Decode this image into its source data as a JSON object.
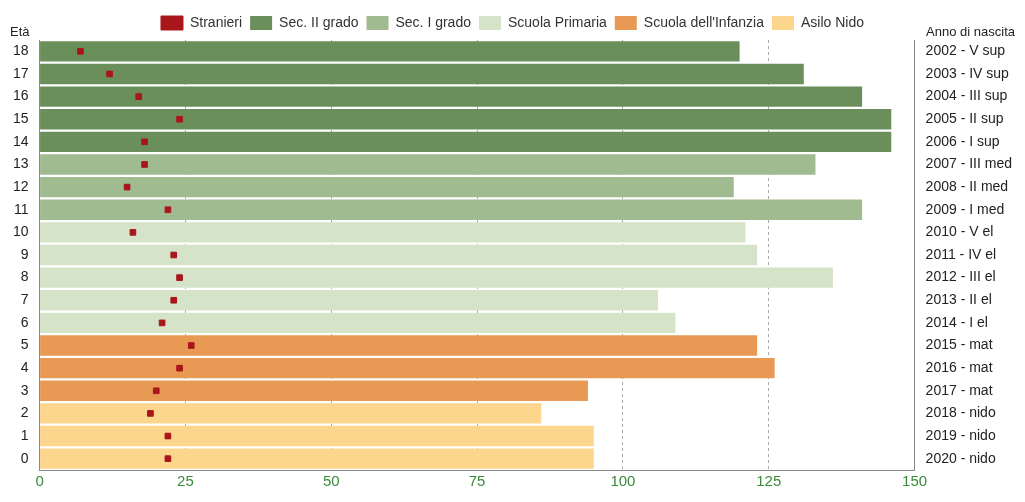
{
  "chart_data": {
    "type": "bar",
    "orientation": "horizontal",
    "ylabel": "Età",
    "y2label": "Anno di nascita",
    "categories": [
      "18",
      "17",
      "16",
      "15",
      "14",
      "13",
      "12",
      "11",
      "10",
      "9",
      "8",
      "7",
      "6",
      "5",
      "4",
      "3",
      "2",
      "1",
      "0"
    ],
    "y2_categories": [
      "2002 - V sup",
      "2003 - IV sup",
      "2004 - III sup",
      "2005 - II sup",
      "2006 - I sup",
      "2007 - III med",
      "2008 - II med",
      "2009 - I med",
      "2010 - V el",
      "2011 - IV el",
      "2012 - III el",
      "2013 - II el",
      "2014 - I el",
      "2015 - mat",
      "2016 - mat",
      "2017 - mat",
      "2018 - nido",
      "2019 - nido",
      "2020 - nido"
    ],
    "series": [
      {
        "name": "Sec. II grado",
        "color": "#6b8f5a",
        "values": [
          120,
          131,
          141,
          146,
          146,
          null,
          null,
          null,
          null,
          null,
          null,
          null,
          null,
          null,
          null,
          null,
          null,
          null,
          null
        ]
      },
      {
        "name": "Sec. I grado",
        "color": "#9fbb8f",
        "values": [
          null,
          null,
          null,
          null,
          null,
          133,
          119,
          141,
          null,
          null,
          null,
          null,
          null,
          null,
          null,
          null,
          null,
          null,
          null
        ]
      },
      {
        "name": "Scuola Primaria",
        "color": "#d5e3c8",
        "values": [
          null,
          null,
          null,
          null,
          null,
          null,
          null,
          null,
          121,
          123,
          136,
          106,
          109,
          null,
          null,
          null,
          null,
          null,
          null
        ]
      },
      {
        "name": "Scuola dell'Infanzia",
        "color": "#e89a55",
        "values": [
          null,
          null,
          null,
          null,
          null,
          null,
          null,
          null,
          null,
          null,
          null,
          null,
          null,
          123,
          126,
          94,
          null,
          null,
          null
        ]
      },
      {
        "name": "Asilo Nido",
        "color": "#fdd68e",
        "values": [
          null,
          null,
          null,
          null,
          null,
          null,
          null,
          null,
          null,
          null,
          null,
          null,
          null,
          null,
          null,
          null,
          86,
          95,
          95
        ]
      },
      {
        "name": "Stranieri",
        "type": "scatter",
        "marker": "square",
        "color": "#a8161c",
        "values": [
          7,
          12,
          17,
          24,
          18,
          18,
          15,
          22,
          16,
          23,
          24,
          23,
          21,
          26,
          24,
          20,
          19,
          22,
          22
        ]
      }
    ],
    "xlim": [
      0,
      150
    ],
    "xticks": [
      0,
      25,
      50,
      75,
      100,
      125,
      150
    ],
    "grid": "x",
    "legend": "top"
  }
}
